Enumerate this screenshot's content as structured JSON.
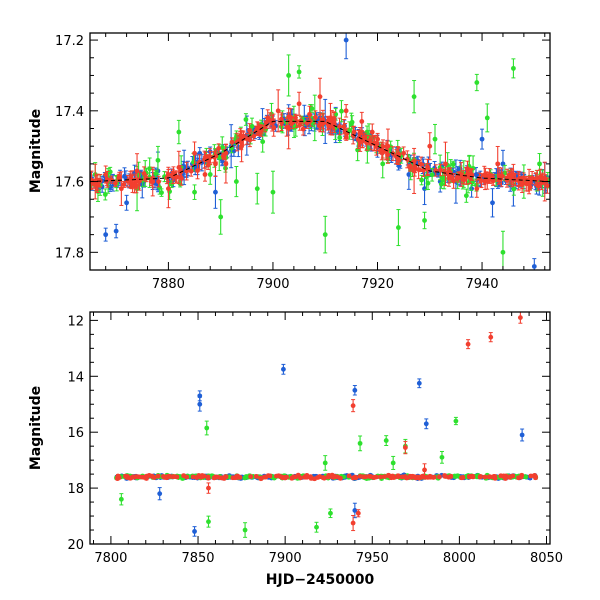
{
  "chart_data": [
    {
      "type": "scatter",
      "panel": "top",
      "title": "",
      "xlabel": "",
      "ylabel": "Magnitude",
      "xlim": [
        7865,
        7953
      ],
      "ylim": [
        17.85,
        17.18
      ],
      "y_inverted": true,
      "x_ticks": [
        7880,
        7900,
        7920,
        7940
      ],
      "y_ticks": [
        17.2,
        17.4,
        17.6,
        17.8
      ],
      "grid": false,
      "legend": "none",
      "series": [
        {
          "color": "#1f5fd6",
          "sample_points": [
            [
              7866,
              17.6
            ],
            [
              7868,
              17.75
            ],
            [
              7870,
              17.74
            ],
            [
              7872,
              17.66
            ],
            [
              7875,
              17.61
            ],
            [
              7878,
              17.57
            ],
            [
              7880,
              17.6
            ],
            [
              7883,
              17.56
            ],
            [
              7886,
              17.52
            ],
            [
              7889,
              17.63
            ],
            [
              7892,
              17.5
            ],
            [
              7895,
              17.47
            ],
            [
              7898,
              17.44
            ],
            [
              7900,
              17.43
            ],
            [
              7903,
              17.41
            ],
            [
              7906,
              17.42
            ],
            [
              7910,
              17.43
            ],
            [
              7912,
              17.44
            ],
            [
              7914,
              17.2
            ],
            [
              7917,
              17.46
            ],
            [
              7920,
              17.5
            ],
            [
              7924,
              17.55
            ],
            [
              7926,
              17.58
            ],
            [
              7929,
              17.62
            ],
            [
              7932,
              17.6
            ],
            [
              7935,
              17.6
            ],
            [
              7938,
              17.62
            ],
            [
              7940,
              17.48
            ],
            [
              7942,
              17.66
            ],
            [
              7944,
              17.55
            ],
            [
              7946,
              17.62
            ],
            [
              7948,
              17.6
            ],
            [
              7950,
              17.84
            ],
            [
              7952,
              17.59
            ]
          ]
        },
        {
          "color": "#2ee02e",
          "sample_points": [
            [
              7866,
              17.58
            ],
            [
              7870,
              17.6
            ],
            [
              7874,
              17.62
            ],
            [
              7878,
              17.54
            ],
            [
              7882,
              17.46
            ],
            [
              7885,
              17.63
            ],
            [
              7888,
              17.58
            ],
            [
              7890,
              17.7
            ],
            [
              7893,
              17.6
            ],
            [
              7897,
              17.62
            ],
            [
              7900,
              17.63
            ],
            [
              7903,
              17.3
            ],
            [
              7905,
              17.29
            ],
            [
              7908,
              17.42
            ],
            [
              7910,
              17.75
            ],
            [
              7912,
              17.41
            ],
            [
              7915,
              17.44
            ],
            [
              7918,
              17.46
            ],
            [
              7921,
              17.55
            ],
            [
              7924,
              17.73
            ],
            [
              7927,
              17.36
            ],
            [
              7929,
              17.71
            ],
            [
              7931,
              17.48
            ],
            [
              7934,
              17.57
            ],
            [
              7937,
              17.64
            ],
            [
              7939,
              17.32
            ],
            [
              7941,
              17.42
            ],
            [
              7944,
              17.8
            ],
            [
              7946,
              17.28
            ],
            [
              7948,
              17.6
            ],
            [
              7951,
              17.55
            ]
          ]
        },
        {
          "color": "#f23f2f",
          "sample_points": [
            [
              7866,
              17.6
            ],
            [
              7868,
              17.58
            ],
            [
              7871,
              17.62
            ],
            [
              7874,
              17.57
            ],
            [
              7877,
              17.6
            ],
            [
              7880,
              17.62
            ],
            [
              7882,
              17.56
            ],
            [
              7885,
              17.52
            ],
            [
              7887,
              17.58
            ],
            [
              7889,
              17.55
            ],
            [
              7891,
              17.55
            ],
            [
              7894,
              17.5
            ],
            [
              7897,
              17.45
            ],
            [
              7899,
              17.42
            ],
            [
              7901,
              17.4
            ],
            [
              7903,
              17.45
            ],
            [
              7905,
              17.38
            ],
            [
              7907,
              17.41
            ],
            [
              7909,
              17.36
            ],
            [
              7911,
              17.42
            ],
            [
              7914,
              17.4
            ],
            [
              7917,
              17.43
            ],
            [
              7919,
              17.46
            ],
            [
              7922,
              17.5
            ],
            [
              7925,
              17.52
            ],
            [
              7927,
              17.57
            ],
            [
              7930,
              17.5
            ],
            [
              7933,
              17.55
            ],
            [
              7936,
              17.58
            ],
            [
              7939,
              17.62
            ],
            [
              7941,
              17.6
            ],
            [
              7943,
              17.55
            ],
            [
              7946,
              17.58
            ],
            [
              7949,
              17.6
            ],
            [
              7952,
              17.6
            ]
          ]
        }
      ],
      "model_curve": {
        "color": "#000000",
        "style": "dashed",
        "x": [
          7865,
          7880,
          7890,
          7900,
          7910,
          7920,
          7930,
          7940,
          7953
        ],
        "y": [
          17.6,
          17.59,
          17.52,
          17.43,
          17.43,
          17.5,
          17.57,
          17.59,
          17.6
        ]
      }
    },
    {
      "type": "scatter",
      "panel": "bottom",
      "title": "",
      "xlabel": "HJD−2450000",
      "ylabel": "Magnitude",
      "xlim": [
        7788,
        8052
      ],
      "ylim": [
        20.0,
        11.7
      ],
      "y_inverted": true,
      "x_ticks": [
        7800,
        7850,
        7900,
        7950,
        8000,
        8050
      ],
      "y_ticks": [
        12,
        14,
        16,
        18,
        20
      ],
      "grid": false,
      "legend": "none",
      "series": [
        {
          "color": "#1f5fd6",
          "outliers": [
            [
              7848,
              19.55
            ],
            [
              7851,
              14.7
            ],
            [
              7851,
              15.0
            ],
            [
              7899,
              13.75
            ],
            [
              7940,
              14.5
            ],
            [
              7977,
              14.25
            ],
            [
              7981,
              15.7
            ],
            [
              8036,
              16.1
            ],
            [
              7940,
              18.8
            ],
            [
              7828,
              18.2
            ]
          ]
        },
        {
          "color": "#2ee02e",
          "outliers": [
            [
              7806,
              18.4
            ],
            [
              7855,
              15.85
            ],
            [
              7856,
              19.2
            ],
            [
              7877,
              19.5
            ],
            [
              7918,
              19.4
            ],
            [
              7923,
              17.1
            ],
            [
              7943,
              16.4
            ],
            [
              7958,
              16.3
            ],
            [
              7962,
              17.1
            ],
            [
              7969,
              16.5
            ],
            [
              7990,
              16.9
            ],
            [
              7998,
              15.6
            ],
            [
              7926,
              18.9
            ]
          ]
        },
        {
          "color": "#f23f2f",
          "outliers": [
            [
              7939,
              15.05
            ],
            [
              7939,
              19.25
            ],
            [
              7942,
              18.9
            ],
            [
              7969,
              16.55
            ],
            [
              7980,
              17.35
            ],
            [
              8005,
              12.85
            ],
            [
              8018,
              12.6
            ],
            [
              8035,
              11.9
            ],
            [
              7856,
              18.0
            ]
          ]
        }
      ],
      "baseline": {
        "y": 17.6,
        "x_range": [
          7803,
          8044
        ]
      }
    }
  ]
}
